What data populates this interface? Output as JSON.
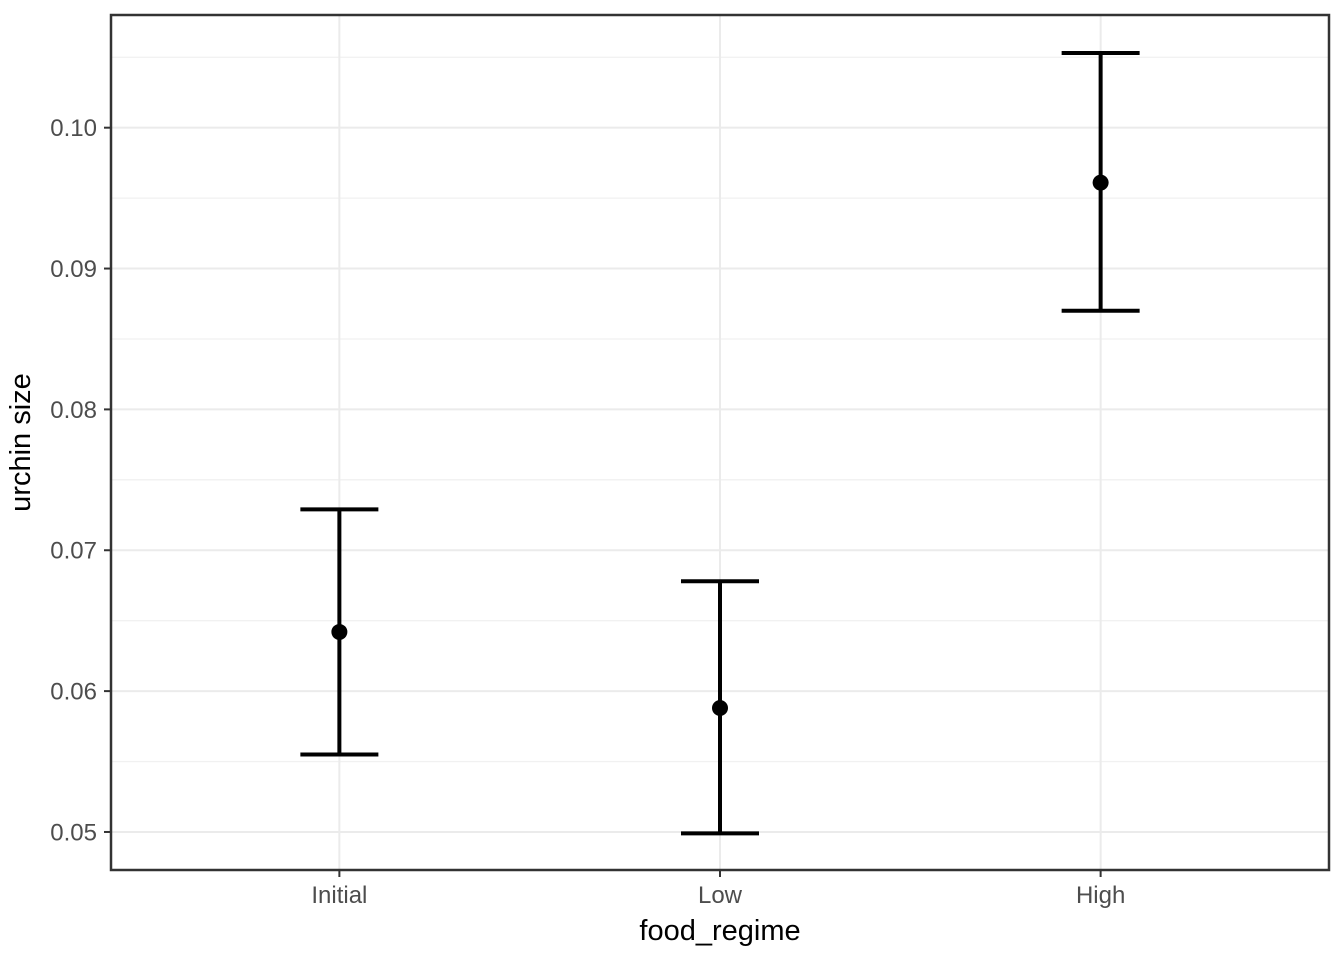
{
  "chart_data": {
    "type": "pointrange",
    "title": "",
    "xlabel": "food_regime",
    "ylabel": "urchin size",
    "categories": [
      "Initial",
      "Low",
      "High"
    ],
    "series": [
      {
        "name": "fitted urchin size with confidence interval",
        "points": [
          {
            "category": "Initial",
            "mean": 0.0642,
            "lower": 0.0555,
            "upper": 0.0729
          },
          {
            "category": "Low",
            "mean": 0.0588,
            "lower": 0.0499,
            "upper": 0.0678
          },
          {
            "category": "High",
            "mean": 0.0961,
            "lower": 0.087,
            "upper": 0.1053
          }
        ]
      }
    ],
    "ylim": [
      0.0473,
      0.108
    ],
    "yticks": [
      0.05,
      0.06,
      0.07,
      0.08,
      0.09,
      0.1
    ],
    "ytick_labels": [
      "0.05",
      "0.06",
      "0.07",
      "0.08",
      "0.09",
      "0.10"
    ],
    "yminor": [
      0.055,
      0.065,
      0.075,
      0.085,
      0.095,
      0.105
    ],
    "grid": {
      "major": true,
      "minor": true
    },
    "legend": "none"
  },
  "style": {
    "background": "#ffffff",
    "panel_background": "#ffffff",
    "grid_major_color": "#ebebeb",
    "grid_minor_color": "#f1f1f1",
    "panel_border_color": "#333333",
    "tick_mark_color": "#333333",
    "axis_text_color": "#4d4d4d",
    "axis_title_color": "#000000",
    "data_color": "#000000"
  }
}
